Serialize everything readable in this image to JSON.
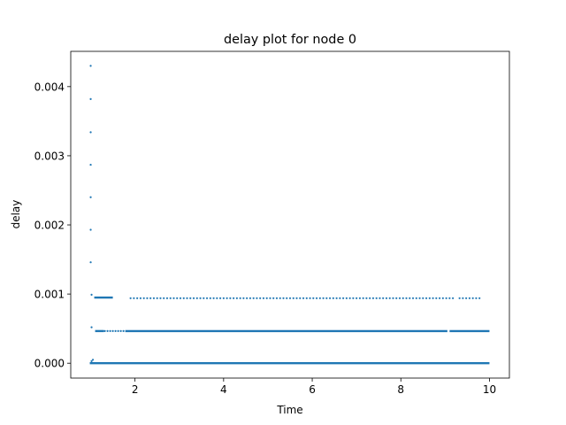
{
  "chart_data": {
    "type": "scatter",
    "title": "delay plot for node 0",
    "xlabel": "Time",
    "ylabel": "delay",
    "xlim": [
      0.55,
      10.45
    ],
    "ylim": [
      -0.000215,
      0.00451
    ],
    "x_ticks": [
      2,
      4,
      6,
      8,
      10
    ],
    "x_tick_labels": [
      "2",
      "4",
      "6",
      "8",
      "10"
    ],
    "y_ticks": [
      0.0,
      0.001,
      0.002,
      0.003,
      0.004
    ],
    "y_tick_labels": [
      "0.000",
      "0.001",
      "0.002",
      "0.003",
      "0.004"
    ],
    "grid": false,
    "legend": "none",
    "marker_color": "#1f77b4",
    "series": [
      {
        "values_description_free": true,
        "dense_bands": [
          {
            "x_start": 0.98,
            "x_end": 10.0,
            "y": 0.0
          },
          {
            "x_start": 1.1,
            "x_end": 1.3,
            "y": 0.000465
          },
          {
            "x_start": 1.78,
            "x_end": 9.05,
            "y": 0.000465
          },
          {
            "x_start": 9.1,
            "x_end": 10.0,
            "y": 0.000465
          },
          {
            "x_start": 1.08,
            "x_end": 1.5,
            "y": 0.00095
          }
        ],
        "sparse_bands": [
          {
            "x_start": 1.9,
            "x_end": 9.8,
            "y": 0.00094,
            "step": 0.075,
            "gap": [
              9.2,
              9.3
            ]
          },
          {
            "x_start": 1.32,
            "x_end": 1.78,
            "y": 0.000465,
            "step": 0.06
          }
        ],
        "points": [
          {
            "x": 1.0,
            "y": 0.0043
          },
          {
            "x": 1.0,
            "y": 0.00382
          },
          {
            "x": 1.0,
            "y": 0.00334
          },
          {
            "x": 1.0,
            "y": 0.00287
          },
          {
            "x": 1.0,
            "y": 0.0024
          },
          {
            "x": 1.0,
            "y": 0.00193
          },
          {
            "x": 1.0,
            "y": 0.00146
          },
          {
            "x": 1.02,
            "y": 0.00099
          },
          {
            "x": 1.02,
            "y": 0.00052
          },
          {
            "x": 1.05,
            "y": 5e-05
          },
          {
            "x": 1.02,
            "y": 3e-05
          }
        ]
      }
    ]
  }
}
